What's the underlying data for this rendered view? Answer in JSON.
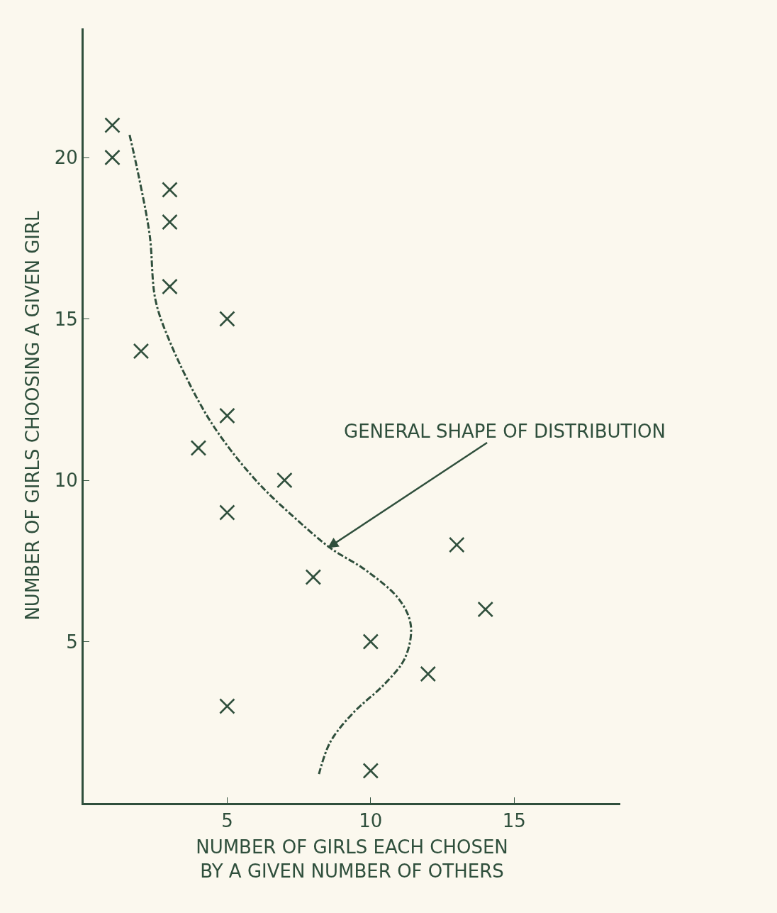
{
  "chart_data": {
    "type": "scatter",
    "xlabel": "NUMBER OF GIRLS EACH CHOSEN\nBY A GIVEN NUMBER OF OTHERS",
    "ylabel": "NUMBER OF GIRLS CHOOSING A GIVEN GIRL",
    "series": [
      {
        "type": "scatter",
        "color": "#2f4f3c",
        "marker": "cross",
        "x": [
          1,
          1,
          3,
          3,
          3,
          2,
          5,
          5,
          4,
          7,
          5,
          8,
          13,
          14,
          10,
          12,
          5,
          10
        ],
        "values": [
          21,
          20,
          19,
          18,
          16,
          14,
          15,
          12,
          11,
          10,
          9,
          7,
          8,
          6,
          5,
          4,
          3,
          1
        ]
      },
      {
        "type": "line",
        "color": "#2f4f3c",
        "marker": "none",
        "line_style": "dashed",
        "x": [
          1.6,
          1.9,
          2.3,
          2.5,
          3,
          4.1,
          4.9,
          6.1,
          7.4,
          8.6,
          9.85,
          11,
          11.4,
          11.2,
          10.5,
          9.4,
          8.6,
          8.2
        ],
        "values": [
          20.7,
          19.5,
          17.6,
          15.6,
          14.3,
          12.3,
          11.2,
          9.9,
          8.8,
          7.9,
          7.2,
          6.3,
          5.5,
          4.5,
          3.7,
          2.8,
          1.9,
          0.9
        ]
      }
    ],
    "annotations": [
      {
        "text": "GENERAL SHAPE OF DISTRIBUTION",
        "x": 8.5,
        "y": 7.9
      }
    ],
    "xlim": [
      0,
      18.7
    ],
    "ylim": [
      0,
      24
    ],
    "xticks": [
      5,
      10,
      15
    ],
    "yticks": [
      5,
      10,
      15,
      20
    ],
    "grid": false
  }
}
